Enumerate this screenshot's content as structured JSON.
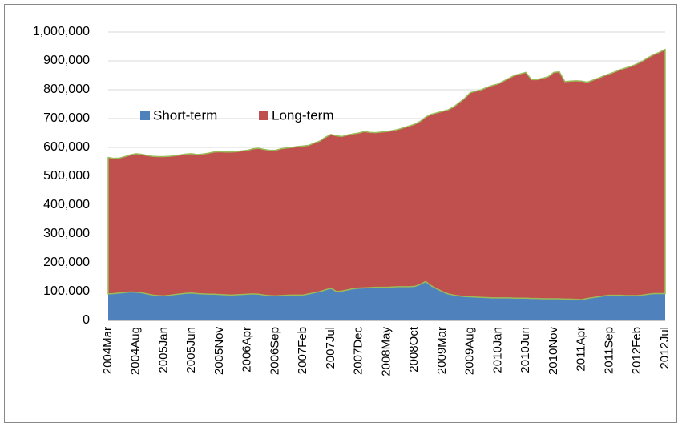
{
  "chart_data": {
    "type": "stacked-area",
    "categories": [
      "2004Mar",
      null,
      null,
      null,
      null,
      "2004Aug",
      null,
      null,
      null,
      null,
      "2005Jan",
      null,
      null,
      null,
      null,
      "2005Jun",
      null,
      null,
      null,
      null,
      "2005Nov",
      null,
      null,
      null,
      null,
      "2006Apr",
      null,
      null,
      null,
      null,
      "2006Sep",
      null,
      null,
      null,
      null,
      "2007Feb",
      null,
      null,
      null,
      null,
      "2007Jul",
      null,
      null,
      null,
      null,
      "2007Dec",
      null,
      null,
      null,
      null,
      "2008May",
      null,
      null,
      null,
      null,
      "2008Oct",
      null,
      null,
      null,
      null,
      "2009Mar",
      null,
      null,
      null,
      null,
      "2009Aug",
      null,
      null,
      null,
      null,
      "2010Jan",
      null,
      null,
      null,
      null,
      "2010Jun",
      null,
      null,
      null,
      null,
      "2010Nov",
      null,
      null,
      null,
      null,
      "2011Apr",
      null,
      null,
      null,
      null,
      "2011Sep",
      null,
      null,
      null,
      null,
      "2012Feb",
      null,
      null,
      null,
      null,
      "2012Jul"
    ],
    "series": [
      {
        "name": "Short-term",
        "color": "#4f81bd",
        "values": [
          92000,
          93000,
          95000,
          97000,
          99000,
          98000,
          96000,
          92000,
          88000,
          86000,
          85000,
          87000,
          90000,
          92000,
          94000,
          95000,
          93000,
          92000,
          91000,
          91000,
          90000,
          89000,
          88000,
          89000,
          90000,
          91000,
          92000,
          91000,
          88000,
          86000,
          85000,
          86000,
          87000,
          88000,
          88000,
          88000,
          92000,
          96000,
          100000,
          106000,
          112000,
          100000,
          102000,
          106000,
          110000,
          112000,
          113000,
          114000,
          115000,
          115000,
          115000,
          116000,
          117000,
          117000,
          117000,
          118000,
          125000,
          135000,
          120000,
          110000,
          100000,
          92000,
          88000,
          85000,
          83000,
          82000,
          81000,
          80000,
          79000,
          78000,
          78000,
          78000,
          78000,
          77000,
          77000,
          77000,
          76000,
          76000,
          75000,
          75000,
          75000,
          75000,
          74000,
          74000,
          73000,
          72000,
          76000,
          79000,
          82000,
          85000,
          87000,
          87000,
          87000,
          86000,
          86000,
          86000,
          88000,
          91000,
          93000,
          93000,
          93000
        ]
      },
      {
        "name": "Long-term",
        "color": "#c0504d",
        "values": [
          473000,
          469000,
          468000,
          471000,
          475000,
          480000,
          480000,
          480000,
          481000,
          482000,
          483000,
          482000,
          481000,
          482000,
          483000,
          483000,
          482000,
          485000,
          489000,
          493000,
          495000,
          495000,
          496000,
          496000,
          498000,
          499000,
          503000,
          506000,
          505000,
          504000,
          505000,
          509000,
          511000,
          512000,
          515000,
          517000,
          515000,
          519000,
          522000,
          529000,
          533000,
          540000,
          536000,
          537000,
          537000,
          538000,
          542000,
          538000,
          536000,
          538000,
          540000,
          542000,
          545000,
          551000,
          557000,
          562000,
          565000,
          570000,
          595000,
          610000,
          625000,
          638000,
          652000,
          670000,
          687000,
          708000,
          714000,
          720000,
          729000,
          737000,
          742000,
          752000,
          762000,
          773000,
          778000,
          783000,
          759000,
          759000,
          765000,
          770000,
          785000,
          787000,
          754000,
          756000,
          758000,
          758000,
          750000,
          754000,
          758000,
          763000,
          768000,
          775000,
          783000,
          790000,
          796000,
          804000,
          812000,
          821000,
          829000,
          837000,
          847000
        ]
      }
    ],
    "ylim": [
      0,
      1000000
    ],
    "yticks": [
      0,
      {
        "value": 100000,
        "label": "100,000"
      },
      {
        "value": 200000,
        "label": "200,000"
      },
      {
        "value": 300000,
        "label": "300,000"
      },
      {
        "value": 400000,
        "label": "400,000"
      },
      {
        "value": 500000,
        "label": "500,000"
      },
      {
        "value": 600000,
        "label": "600,000"
      },
      {
        "value": 700000,
        "label": "700,000"
      },
      {
        "value": 800000,
        "label": "800,000"
      },
      {
        "value": 900000,
        "label": "900,000"
      },
      {
        "value": 1000000,
        "label": "1,000,000"
      }
    ],
    "grid": true
  }
}
